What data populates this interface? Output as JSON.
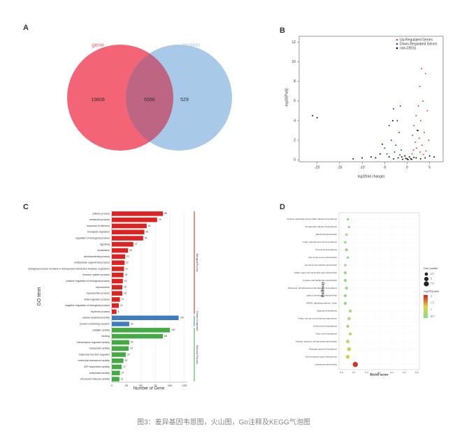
{
  "caption": "图3：差异基因韦恩图，火山图，Go注释及KEGG气泡图",
  "chart_data": [
    {
      "type": "venn",
      "panel": "A",
      "sets": [
        {
          "name": "gene",
          "color": "#f26476",
          "value": 19808
        },
        {
          "name": "protein",
          "color": "#a9c9e9",
          "value": 529
        }
      ],
      "overlap": 6586,
      "overlap_color": "#bd6582"
    },
    {
      "type": "scatter",
      "panel": "B",
      "xlabel": "log2(fold change)",
      "ylabel": "-log10(Padj)",
      "xlim": [
        -24,
        8
      ],
      "ylim": [
        -0.2,
        12.6
      ],
      "xticks": [
        -20,
        -15,
        -10,
        -5,
        0,
        5
      ],
      "yticks": [
        0,
        2,
        4,
        6,
        8,
        10,
        12
      ],
      "legend": "top-right",
      "series": [
        {
          "name": "Up-Regulated Genes",
          "color": "#e04848",
          "x": [
            3.2,
            4.1,
            2.8,
            3.5,
            2.5,
            4.5,
            2.0,
            3.0,
            1.5,
            2.2,
            3.8,
            1.2,
            2.7,
            4.8,
            1.8,
            3.3,
            2.1,
            1.4,
            4.2,
            2.9,
            1.1,
            3.6
          ],
          "y": [
            9.3,
            8.8,
            7.5,
            6.0,
            5.5,
            5.0,
            4.5,
            4.0,
            3.5,
            3.0,
            2.8,
            2.5,
            2.2,
            2.0,
            1.8,
            1.5,
            1.2,
            1.0,
            0.9,
            0.8,
            0.6,
            0.55
          ]
        },
        {
          "name": "Down-Regulated Genes",
          "color": "#3a3ad0",
          "x": [
            -1.5,
            -3.0,
            -2.2,
            -4.0,
            -1.8,
            -3.5,
            -2.5,
            -5.0,
            -1.3,
            -2.8,
            -4.5,
            -1.6
          ],
          "y": [
            5.5,
            5.2,
            4.0,
            3.5,
            2.8,
            2.0,
            1.5,
            1.2,
            1.0,
            0.8,
            0.6,
            0.5
          ]
        },
        {
          "name": "non-DEGs",
          "color": "#111111",
          "x": [
            -21,
            -20,
            -6,
            -8,
            -10,
            -4,
            -3,
            -2,
            -1,
            0,
            1,
            2,
            3,
            0.5,
            -0.5,
            1.5,
            -12,
            -7,
            6,
            5,
            0.2,
            -0.3,
            0.8,
            -1.2,
            4,
            -3.2,
            2.4,
            -5.5
          ],
          "y": [
            4.5,
            4.3,
            0.6,
            0.3,
            0.2,
            0.3,
            0.1,
            0.2,
            0.05,
            0.1,
            0.05,
            0.2,
            0.1,
            0.3,
            0.4,
            0.25,
            0.1,
            0.2,
            0.3,
            0.4,
            0.02,
            0.15,
            0.12,
            0.3,
            0.2,
            4.0,
            3.0,
            1.6
          ]
        }
      ]
    },
    {
      "type": "bar",
      "panel": "C",
      "orientation": "horizontal",
      "ylabel": "GO term",
      "xlabel": "Number of Gene",
      "xlim": [
        0,
        130
      ],
      "xticks": [
        0,
        25,
        50,
        75,
        100,
        125
      ],
      "grid": true,
      "categories": [
        "cellular process",
        "metabolic process",
        "response to stimulus",
        "biological regulation",
        "regulation of biological process",
        "signaling",
        "localization",
        "developmental process",
        "multicellular organismal process",
        "biological process involved in interspecies interaction between organisms",
        "immune system process",
        "positive regulation of biological process",
        "reproduction",
        "reproductive process",
        "multi-organism process",
        "negative regulation of biological process",
        "rhythmic process",
        "cellular anatomical entity",
        "protein-containing complex",
        "catalytic activity",
        "binding",
        "transcription regulator activity",
        "transporter activity",
        "molecular function regulator",
        "molecular transducer activity",
        "ATP-dependent activity",
        "antioxidant activity",
        "structural molecule activity"
      ],
      "series": [
        {
          "name": "Biological Process",
          "color": "#dd2222",
          "values": [
            88,
            78,
            60,
            56,
            54,
            37,
            28,
            23,
            22,
            21,
            20,
            19,
            18,
            18,
            14,
            12,
            8,
            null,
            null,
            null,
            null,
            null,
            null,
            null,
            null,
            null,
            null,
            null
          ]
        },
        {
          "name": "Cellular Component",
          "color": "#3d7cc0",
          "values": [
            null,
            null,
            null,
            null,
            null,
            null,
            null,
            null,
            null,
            null,
            null,
            null,
            null,
            null,
            null,
            null,
            null,
            115,
            30,
            null,
            null,
            null,
            null,
            null,
            null,
            null,
            null,
            null
          ]
        },
        {
          "name": "Molecular Function",
          "color": "#44aa44",
          "values": [
            null,
            null,
            null,
            null,
            null,
            null,
            null,
            null,
            null,
            null,
            null,
            null,
            null,
            null,
            null,
            null,
            null,
            null,
            null,
            100,
            88,
            30,
            29,
            24,
            20,
            17,
            14,
            13
          ]
        }
      ]
    },
    {
      "type": "bubble",
      "panel": "D",
      "xlabel": "RichFactor",
      "ylabel": "Pathway",
      "xlim": [
        -0.02,
        0.62
      ],
      "xticks": [
        {
          "value": 0,
          "label": "0.0"
        },
        0.1,
        0.2,
        0.3,
        0.4,
        0.5,
        0.6
      ],
      "grid": true,
      "categories": [
        "Tropane, piperidine and pyridine alkaloid biosynthesis",
        "Isoquinoline alkaloid biosynthesis",
        "Riboflavin metabolism",
        "Cutin, suberine and wax biosynthesis",
        "Flavonoid biosynthesis",
        "Starch and sucrose metabolism",
        "Ascorbate and aldarate metabolism",
        "Amino sugar and nucleotide sugar metabolism",
        "Cysteine and methionine metabolism",
        "Stilbenoid, diarylheptanoid and gingerol biosynthesis",
        "alpha-Linolenic acid metabolism",
        "MAPK signaling pathway - plant",
        "Arginine biosynthesis",
        "Valine, leucine and isoleucine degradation",
        "Isoflavonoid biosynthesis",
        "Fatty acid biosynthesis",
        "Alanine, aspartate and glutamate metabolism",
        "Phenylpropanoid biosynthesis",
        "Plant hormone signal transduction",
        "Glutathione metabolism"
      ],
      "x": [
        0.05,
        0.06,
        0.04,
        0.03,
        0.04,
        0.05,
        0.03,
        0.03,
        0.03,
        0.04,
        0.03,
        0.03,
        0.07,
        0.06,
        0.05,
        0.07,
        0.05,
        0.06,
        0.05,
        0.11
      ],
      "size": [
        1,
        1,
        1,
        1,
        2,
        1,
        1,
        2,
        2,
        2,
        2,
        2,
        2,
        2,
        2,
        2,
        3,
        4,
        4,
        8
      ],
      "qvalue": [
        0.5,
        0.5,
        0.5,
        0.5,
        0.6,
        0.5,
        0.5,
        0.6,
        0.6,
        0.6,
        0.6,
        0.6,
        0.7,
        0.7,
        0.7,
        0.8,
        0.9,
        1.0,
        1.1,
        2.0
      ],
      "size_legend": {
        "title": "Gene_number",
        "values": [
          2.5,
          5.0,
          7.5
        ]
      },
      "color_legend": {
        "title": "-log10(Qvalue)",
        "ticks": [
          0.5,
          1.0,
          1.5,
          2.0
        ],
        "range": [
          0.4,
          2.1
        ],
        "colors": [
          "#7fe08a",
          "#e8d040",
          "#d02020"
        ]
      }
    }
  ]
}
